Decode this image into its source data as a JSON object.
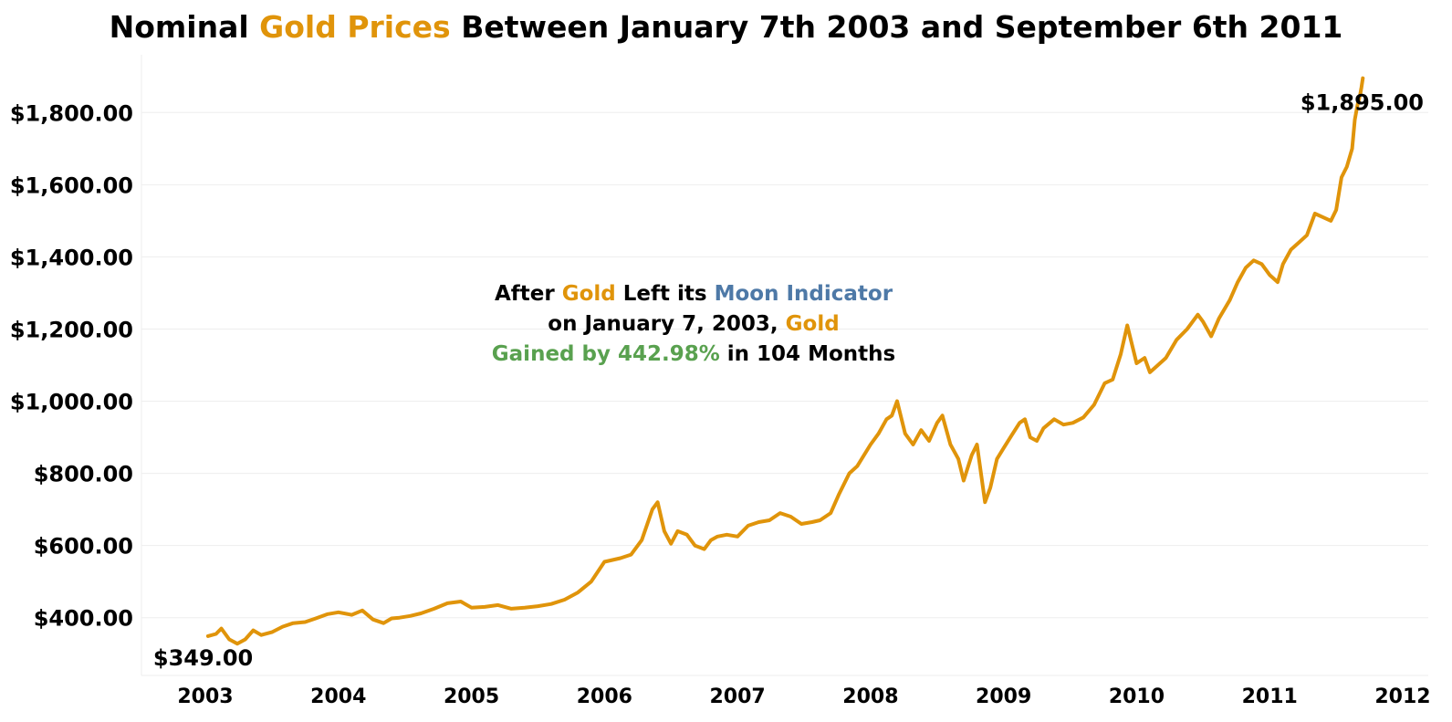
{
  "title": {
    "part1": "Nominal ",
    "part2": "Gold Prices",
    "part3": " Between January 7th 2003 and September 6th 2011"
  },
  "annotation": {
    "line1_a": "After ",
    "line1_b": "Gold",
    "line1_c": " Left its ",
    "line1_d": "Moon Indicator",
    "line2_a": "on January 7, 2003, ",
    "line2_b": "Gold",
    "line3_a": "Gained by 442.98%",
    "line3_b": " in 104 Months"
  },
  "colors": {
    "gold": "#E0940A",
    "blue": "#4E79A7",
    "green": "#59A14F",
    "grid": "#EEEEEE"
  },
  "chart_data": {
    "type": "line",
    "title": "Nominal Gold Prices Between January 7th 2003 and September 6th 2011",
    "xlabel": "",
    "ylabel": "",
    "xlim": [
      2003,
      2012
    ],
    "ylim": [
      240,
      1960
    ],
    "y_ticks": [
      400,
      600,
      800,
      1000,
      1200,
      1400,
      1600,
      1800
    ],
    "y_tick_labels": [
      "$400.00",
      "$600.00",
      "$800.00",
      "$1,000.00",
      "$1,200.00",
      "$1,400.00",
      "$1,600.00",
      "$1,800.00"
    ],
    "x_ticks": [
      2003,
      2004,
      2005,
      2006,
      2007,
      2008,
      2009,
      2010,
      2011,
      2012
    ],
    "x_tick_labels": [
      "2003",
      "2004",
      "2005",
      "2006",
      "2007",
      "2008",
      "2009",
      "2010",
      "2011",
      "2012"
    ],
    "grid": "horizontal",
    "start_label": "$349.00",
    "end_label": "$1,895.00",
    "series": [
      {
        "x": [
          2003.02,
          2003.08,
          2003.12,
          2003.18,
          2003.24,
          2003.3,
          2003.36,
          2003.42,
          2003.5,
          2003.58,
          2003.66,
          2003.75,
          2003.83,
          2003.92,
          2004.0,
          2004.1,
          2004.18,
          2004.26,
          2004.34,
          2004.4,
          2004.46,
          2004.54,
          2004.62,
          2004.72,
          2004.82,
          2004.92,
          2005.0,
          2005.1,
          2005.2,
          2005.3,
          2005.4,
          2005.5,
          2005.6,
          2005.7,
          2005.8,
          2005.9,
          2006.0,
          2006.06,
          2006.12,
          2006.2,
          2006.28,
          2006.36,
          2006.4,
          2006.45,
          2006.5,
          2006.55,
          2006.62,
          2006.68,
          2006.75,
          2006.8,
          2006.85,
          2006.92,
          2007.0,
          2007.08,
          2007.16,
          2007.24,
          2007.32,
          2007.4,
          2007.48,
          2007.56,
          2007.62,
          2007.7,
          2007.76,
          2007.84,
          2007.9,
          2008.0,
          2008.06,
          2008.12,
          2008.16,
          2008.2,
          2008.26,
          2008.32,
          2008.38,
          2008.44,
          2008.5,
          2008.54,
          2008.6,
          2008.66,
          2008.7,
          2008.76,
          2008.8,
          2008.86,
          2008.9,
          2008.95,
          2009.0,
          2009.06,
          2009.12,
          2009.16,
          2009.2,
          2009.25,
          2009.3,
          2009.38,
          2009.45,
          2009.52,
          2009.6,
          2009.68,
          2009.76,
          2009.82,
          2009.88,
          2009.93,
          2010.0,
          2010.06,
          2010.1,
          2010.16,
          2010.22,
          2010.3,
          2010.38,
          2010.46,
          2010.5,
          2010.56,
          2010.62,
          2010.7,
          2010.76,
          2010.82,
          2010.88,
          2010.94,
          2011.0,
          2011.06,
          2011.1,
          2011.16,
          2011.22,
          2011.28,
          2011.34,
          2011.4,
          2011.46,
          2011.5,
          2011.54,
          2011.58,
          2011.62,
          2011.64,
          2011.66,
          2011.68,
          2011.69,
          2011.7
        ],
        "values": [
          349,
          355,
          370,
          340,
          328,
          340,
          365,
          352,
          360,
          375,
          385,
          388,
          398,
          410,
          415,
          408,
          420,
          395,
          385,
          398,
          400,
          405,
          412,
          425,
          440,
          445,
          428,
          430,
          435,
          425,
          428,
          432,
          438,
          450,
          470,
          500,
          555,
          560,
          565,
          575,
          615,
          700,
          720,
          640,
          605,
          640,
          630,
          600,
          590,
          615,
          625,
          630,
          625,
          655,
          665,
          670,
          690,
          680,
          660,
          665,
          670,
          690,
          740,
          800,
          820,
          880,
          910,
          950,
          960,
          1000,
          910,
          880,
          920,
          890,
          940,
          960,
          880,
          840,
          780,
          850,
          880,
          720,
          760,
          840,
          870,
          905,
          940,
          950,
          900,
          890,
          925,
          950,
          935,
          940,
          955,
          990,
          1050,
          1060,
          1130,
          1210,
          1105,
          1120,
          1080,
          1100,
          1120,
          1170,
          1200,
          1240,
          1220,
          1180,
          1230,
          1280,
          1330,
          1370,
          1390,
          1380,
          1350,
          1330,
          1380,
          1420,
          1440,
          1460,
          1520,
          1510,
          1500,
          1530,
          1620,
          1650,
          1700,
          1780,
          1820,
          1850,
          1870,
          1895
        ]
      }
    ]
  }
}
